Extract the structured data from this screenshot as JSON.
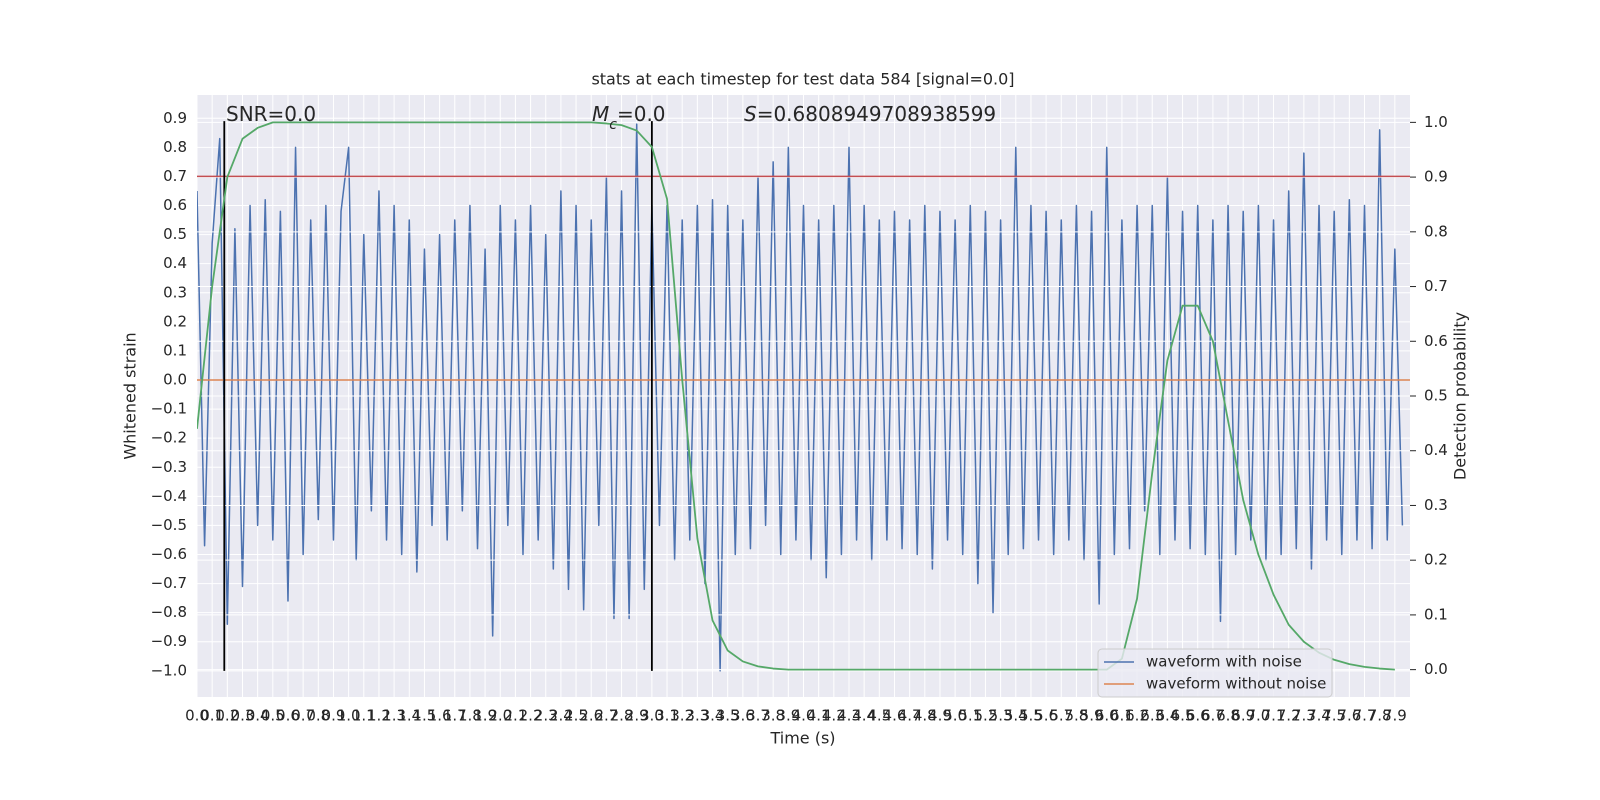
{
  "chart_data": {
    "type": "line",
    "title": "stats at each timestep for test data 584 [signal=0.0]",
    "xlabel": "Time (s)",
    "ylabel": "Whitened strain",
    "y2label": "Detection probability",
    "xlim": [
      0,
      8
    ],
    "ylim": [
      -1.09,
      0.98
    ],
    "y2lim": [
      -0.05,
      1.05
    ],
    "grid": true,
    "legend": "lower right",
    "xticks": [
      {
        "value": 0,
        "label": "0.0"
      },
      0.1,
      0.2,
      0.3,
      0.4,
      0.5,
      0.6,
      0.7,
      0.8,
      0.9,
      {
        "value": 1,
        "label": "1.0"
      },
      1.1,
      1.2,
      1.3,
      1.4,
      1.5,
      1.6,
      1.7,
      1.8,
      1.9,
      {
        "value": 2,
        "label": "2.0"
      },
      2.1,
      2.2,
      2.3,
      2.4,
      2.5,
      2.6,
      2.7,
      2.8,
      2.9,
      {
        "value": 3,
        "label": "3.0"
      },
      3.1,
      3.2,
      3.3,
      3.4,
      3.5,
      3.6,
      3.7,
      3.8,
      3.9,
      {
        "value": 4,
        "label": "4.0"
      },
      4.1,
      4.2,
      4.3,
      4.4,
      4.5,
      4.6,
      4.7,
      4.8,
      4.9,
      {
        "value": 5,
        "label": "5.0"
      },
      5.1,
      5.2,
      5.3,
      5.4,
      5.5,
      5.6,
      5.7,
      5.8,
      5.9,
      {
        "value": 6,
        "label": "6.0"
      },
      6.1,
      6.2,
      6.3,
      6.4,
      6.5,
      6.6,
      6.7,
      6.8,
      6.9,
      {
        "value": 7,
        "label": "7.0"
      },
      7.1,
      7.2,
      7.3,
      7.4,
      7.5,
      7.6,
      7.7,
      7.8,
      7.9
    ],
    "yticks": [
      {
        "value": -1,
        "label": "−1.0"
      },
      {
        "value": -0.9,
        "label": "−0.9"
      },
      {
        "value": -0.8,
        "label": "−0.8"
      },
      {
        "value": -0.7,
        "label": "−0.7"
      },
      {
        "value": -0.6,
        "label": "−0.6"
      },
      {
        "value": -0.5,
        "label": "−0.5"
      },
      {
        "value": -0.4,
        "label": "−0.4"
      },
      {
        "value": -0.3,
        "label": "−0.3"
      },
      {
        "value": -0.2,
        "label": "−0.2"
      },
      {
        "value": -0.1,
        "label": "−0.1"
      },
      {
        "value": 0,
        "label": "0.0"
      },
      0.1,
      0.2,
      0.3,
      0.4,
      0.5,
      0.6,
      0.7,
      0.8,
      0.9
    ],
    "y2ticks": [
      {
        "value": 0,
        "label": "0.0"
      },
      0.1,
      0.2,
      0.3,
      0.4,
      0.5,
      0.6,
      0.7,
      0.8,
      0.9,
      {
        "value": 1,
        "label": "1.0"
      }
    ],
    "series": [
      {
        "name": "waveform with noise",
        "color": "#4c72b0",
        "x": [
          0,
          0.05,
          0.1,
          0.15,
          0.2,
          0.25,
          0.3,
          0.35,
          0.4,
          0.45,
          0.5,
          0.55,
          0.6,
          0.65,
          0.7,
          0.75,
          0.8,
          0.85,
          0.9,
          0.95,
          1,
          1.05,
          1.1,
          1.15,
          1.2,
          1.25,
          1.3,
          1.35,
          1.4,
          1.45,
          1.5,
          1.55,
          1.6,
          1.65,
          1.7,
          1.75,
          1.8,
          1.85,
          1.9,
          1.95,
          2,
          2.05,
          2.1,
          2.15,
          2.2,
          2.25,
          2.3,
          2.35,
          2.4,
          2.45,
          2.5,
          2.55,
          2.6,
          2.65,
          2.7,
          2.75,
          2.8,
          2.85,
          2.9,
          2.95,
          3,
          3.05,
          3.1,
          3.15,
          3.2,
          3.25,
          3.3,
          3.35,
          3.4,
          3.45,
          3.5,
          3.55,
          3.6,
          3.65,
          3.7,
          3.75,
          3.8,
          3.85,
          3.9,
          3.95,
          4,
          4.05,
          4.1,
          4.15,
          4.2,
          4.25,
          4.3,
          4.35,
          4.4,
          4.45,
          4.5,
          4.55,
          4.6,
          4.65,
          4.7,
          4.75,
          4.8,
          4.85,
          4.9,
          4.95,
          5,
          5.05,
          5.1,
          5.15,
          5.2,
          5.25,
          5.3,
          5.35,
          5.4,
          5.45,
          5.5,
          5.55,
          5.6,
          5.65,
          5.7,
          5.75,
          5.8,
          5.85,
          5.9,
          5.95,
          6,
          6.05,
          6.1,
          6.15,
          6.2,
          6.25,
          6.3,
          6.35,
          6.4,
          6.45,
          6.5,
          6.55,
          6.6,
          6.65,
          6.7,
          6.75,
          6.8,
          6.85,
          6.9,
          6.95,
          7,
          7.05,
          7.1,
          7.15,
          7.2,
          7.25,
          7.3,
          7.35,
          7.4,
          7.45,
          7.5,
          7.55,
          7.6,
          7.65,
          7.7,
          7.75,
          7.8,
          7.85,
          7.9,
          7.95
        ],
        "values": [
          0.65,
          -0.57,
          0.47,
          0.83,
          -0.84,
          0.52,
          -0.71,
          0.6,
          -0.5,
          0.62,
          -0.55,
          0.58,
          -0.76,
          0.8,
          -0.6,
          0.55,
          -0.48,
          0.6,
          -0.55,
          0.58,
          0.8,
          -0.62,
          0.5,
          -0.45,
          0.65,
          -0.55,
          0.6,
          -0.6,
          0.55,
          -0.66,
          0.45,
          -0.5,
          0.5,
          -0.55,
          0.55,
          -0.45,
          0.6,
          -0.58,
          0.45,
          -0.88,
          0.6,
          -0.5,
          0.55,
          -0.6,
          0.6,
          -0.55,
          0.5,
          -0.65,
          0.65,
          -0.72,
          0.6,
          -0.79,
          0.55,
          -0.5,
          0.7,
          -0.82,
          0.65,
          -0.82,
          0.88,
          -0.72,
          0.6,
          -0.5,
          0.6,
          -0.62,
          0.55,
          -0.55,
          0.6,
          -0.7,
          0.62,
          -1.0,
          0.6,
          -0.6,
          0.55,
          -0.58,
          0.7,
          -0.5,
          0.75,
          -0.6,
          0.8,
          -0.55,
          0.6,
          -0.62,
          0.55,
          -0.68,
          0.6,
          -0.6,
          0.8,
          -0.55,
          0.6,
          -0.62,
          0.55,
          -0.55,
          0.58,
          -0.58,
          0.55,
          -0.6,
          0.6,
          -0.65,
          0.58,
          -0.55,
          0.55,
          -0.6,
          0.6,
          -0.7,
          0.58,
          -0.8,
          0.55,
          -0.6,
          0.8,
          -0.58,
          0.6,
          -0.55,
          0.58,
          -0.6,
          0.55,
          -0.55,
          0.6,
          -0.62,
          0.58,
          -0.77,
          0.8,
          -0.6,
          0.55,
          -0.58,
          0.6,
          -0.45,
          0.6,
          -0.6,
          0.7,
          -0.55,
          0.58,
          -0.58,
          0.6,
          -0.6,
          0.55,
          -0.83,
          0.6,
          -0.6,
          0.58,
          -0.55,
          0.6,
          -0.62,
          0.55,
          -0.6,
          0.65,
          -0.58,
          0.78,
          -0.65,
          0.6,
          -0.55,
          0.58,
          -0.6,
          0.62,
          -0.55,
          0.6,
          -0.58,
          0.86,
          -0.55,
          0.45,
          -0.5
        ]
      },
      {
        "name": "waveform without noise",
        "color": "#dd8452",
        "x": [
          0,
          8
        ],
        "values": [
          0,
          0
        ]
      },
      {
        "color": "#55a868",
        "axis": "y2",
        "x": [
          0,
          0.1,
          0.2,
          0.3,
          0.4,
          0.5,
          0.6,
          0.7,
          0.8,
          0.9,
          1,
          1.1,
          1.2,
          1.3,
          1.4,
          1.5,
          1.6,
          1.7,
          1.8,
          1.9,
          2,
          2.1,
          2.2,
          2.3,
          2.4,
          2.5,
          2.6,
          2.7,
          2.8,
          2.9,
          3,
          3.1,
          3.2,
          3.3,
          3.4,
          3.5,
          3.6,
          3.7,
          3.8,
          3.9,
          4,
          4.1,
          4.2,
          4.3,
          4.4,
          4.5,
          4.6,
          4.7,
          4.8,
          4.9,
          5,
          5.1,
          5.2,
          5.3,
          5.4,
          5.5,
          5.6,
          5.7,
          5.8,
          5.9,
          6,
          6.1,
          6.2,
          6.3,
          6.4,
          6.5,
          6.6,
          6.7,
          6.8,
          6.9,
          7,
          7.1,
          7.2,
          7.3,
          7.4,
          7.5,
          7.6,
          7.7,
          7.8,
          7.9
        ],
        "values": [
          0.44,
          0.7,
          0.9,
          0.97,
          0.99,
          1,
          1,
          1,
          1,
          1,
          1,
          1,
          1,
          1,
          1,
          1,
          1,
          1,
          1,
          1,
          1,
          1,
          1,
          1,
          1,
          1,
          1,
          0.998,
          0.995,
          0.985,
          0.955,
          0.86,
          0.53,
          0.24,
          0.09,
          0.035,
          0.015,
          0.006,
          0.002,
          0,
          0,
          0,
          0,
          0,
          0,
          0,
          0,
          0,
          0,
          0,
          0,
          0,
          0,
          0,
          0,
          0,
          0,
          0,
          0,
          0,
          0,
          0.02,
          0.13,
          0.36,
          0.565,
          0.665,
          0.665,
          0.6,
          0.455,
          0.31,
          0.21,
          0.137,
          0.082,
          0.051,
          0.031,
          0.018,
          0.01,
          0.005,
          0.002,
          0
        ]
      }
    ],
    "hline": {
      "y": 0.7,
      "color": "#c44e52"
    },
    "vlines": {
      "x": [
        0.18,
        3.0
      ],
      "ymin": -1.0,
      "ymax": 0.89,
      "color": "#000000"
    },
    "annotations": [
      {
        "parts": [
          "SNR=0.0"
        ]
      },
      {
        "parts": [
          "M",
          "c",
          "=0.0"
        ]
      },
      {
        "parts": [
          "S",
          "=0.6808949708938599"
        ]
      }
    ]
  }
}
